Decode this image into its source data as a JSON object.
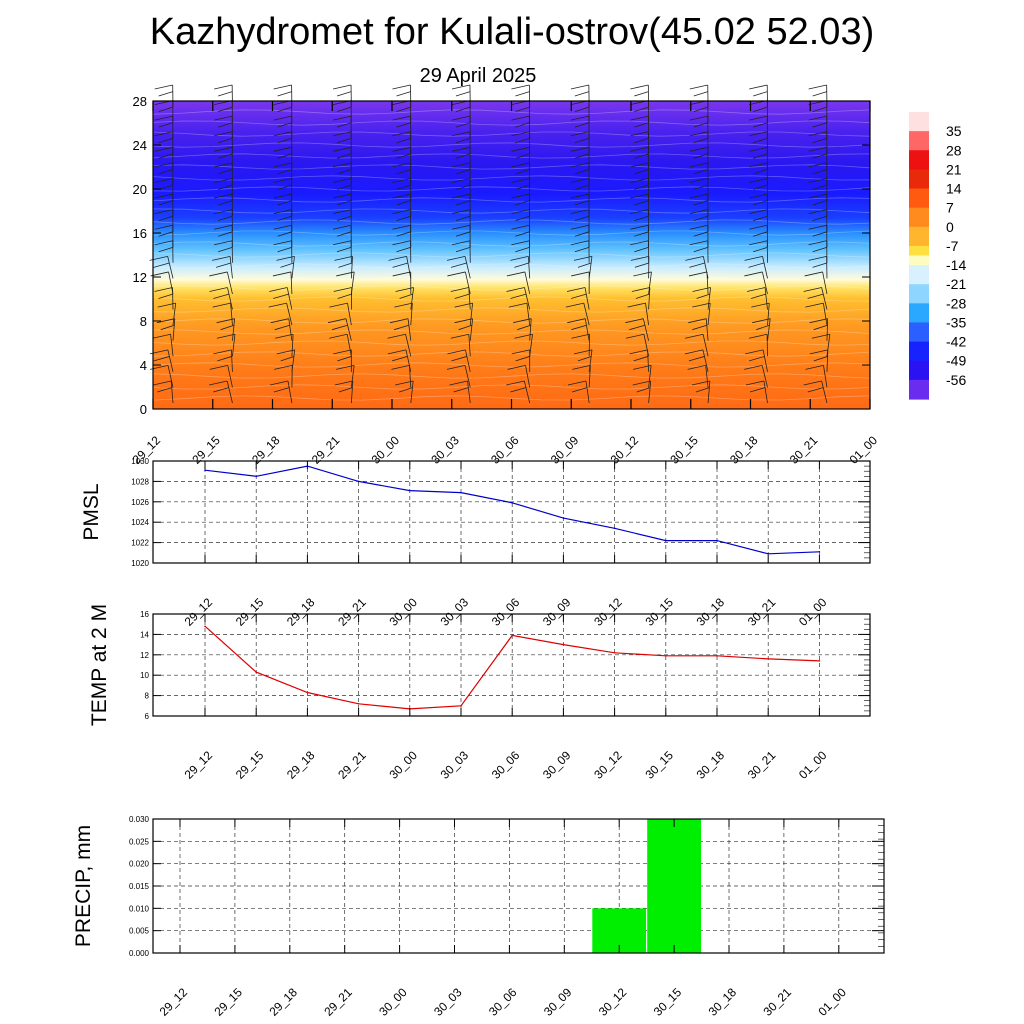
{
  "header": {
    "title": "Kazhydromet for Kulali-ostrov(45.02 52.03)",
    "subtitle": "29 April 2025"
  },
  "colors": {
    "pmsl_line": "#0000cc",
    "temp_line": "#dd0000",
    "precip_bar": "#00ee00",
    "grid": "#333333"
  },
  "chart_data": [
    {
      "type": "heatmap",
      "title": "",
      "x_labels": [
        "29_12",
        "29_15",
        "29_18",
        "29_21",
        "30_00",
        "30_03",
        "30_06",
        "30_09",
        "30_12",
        "30_15",
        "30_18",
        "30_21",
        "01_00"
      ],
      "y_ticks": [
        0,
        4,
        8,
        12,
        16,
        20,
        24,
        28
      ],
      "ylim": [
        0,
        28
      ],
      "colorbar": {
        "labels": [
          "35",
          "28",
          "21",
          "14",
          "7",
          "0",
          "-7",
          "-14",
          "-21",
          "-28",
          "-35",
          "-42",
          "-49",
          "-56"
        ],
        "range": [
          -63,
          42
        ],
        "stops": [
          {
            "v": 42,
            "c": "#ffe0e0"
          },
          {
            "v": 35,
            "c": "#ff6666"
          },
          {
            "v": 28,
            "c": "#ee1111"
          },
          {
            "v": 21,
            "c": "#e82a0a"
          },
          {
            "v": 14,
            "c": "#ff5a10"
          },
          {
            "v": 7,
            "c": "#ff8a1e"
          },
          {
            "v": 0,
            "c": "#ffb52e"
          },
          {
            "v": -7,
            "c": "#ffe040"
          },
          {
            "v": -11,
            "c": "#fffcc0"
          },
          {
            "v": -14,
            "c": "#d9f1ff"
          },
          {
            "v": -21,
            "c": "#8ed6ff"
          },
          {
            "v": -28,
            "c": "#2aa8ff"
          },
          {
            "v": -35,
            "c": "#2c5fff"
          },
          {
            "v": -42,
            "c": "#1822ff"
          },
          {
            "v": -49,
            "c": "#2a12f2"
          },
          {
            "v": -56,
            "c": "#6a2cee"
          },
          {
            "v": -63,
            "c": "#9a44ee"
          }
        ]
      }
    },
    {
      "type": "line",
      "ylabel": "PMSL",
      "categories": [
        "29_12",
        "29_15",
        "29_18",
        "29_21",
        "30_00",
        "30_03",
        "30_06",
        "30_09",
        "30_12",
        "30_15",
        "30_18",
        "30_21",
        "01_00"
      ],
      "values": [
        1029.1,
        1028.5,
        1029.5,
        1028.0,
        1027.1,
        1026.9,
        1025.9,
        1024.4,
        1023.4,
        1022.2,
        1022.2,
        1020.9,
        1021.1
      ],
      "ylim": [
        1020,
        1030
      ],
      "y_ticks": [
        1020,
        1022,
        1024,
        1026,
        1028,
        1030
      ],
      "grid": true
    },
    {
      "type": "line",
      "ylabel": "TEMP at 2 M",
      "categories": [
        "29_12",
        "29_15",
        "29_18",
        "29_21",
        "30_00",
        "30_03",
        "30_06",
        "30_09",
        "30_12",
        "30_15",
        "30_18",
        "30_21",
        "01_00"
      ],
      "values": [
        14.8,
        10.3,
        8.3,
        7.2,
        6.7,
        7.0,
        13.9,
        13.0,
        12.2,
        11.9,
        11.9,
        11.6,
        11.4
      ],
      "ylim": [
        6,
        16
      ],
      "y_ticks": [
        6,
        8,
        10,
        12,
        14,
        16
      ],
      "grid": true
    },
    {
      "type": "bar",
      "ylabel": "PRECIP, mm",
      "categories": [
        "29_12",
        "29_15",
        "29_18",
        "29_21",
        "30_00",
        "30_03",
        "30_06",
        "30_09",
        "30_12",
        "30_15",
        "30_18",
        "30_21",
        "01_00"
      ],
      "values": [
        0,
        0,
        0,
        0,
        0,
        0,
        0,
        0,
        0.01,
        0.03,
        0,
        0,
        0
      ],
      "ylim": [
        0,
        0.03
      ],
      "y_ticks": [
        "0.000",
        "0.005",
        "0.010",
        "0.015",
        "0.020",
        "0.025",
        "0.030"
      ],
      "grid": true
    }
  ]
}
